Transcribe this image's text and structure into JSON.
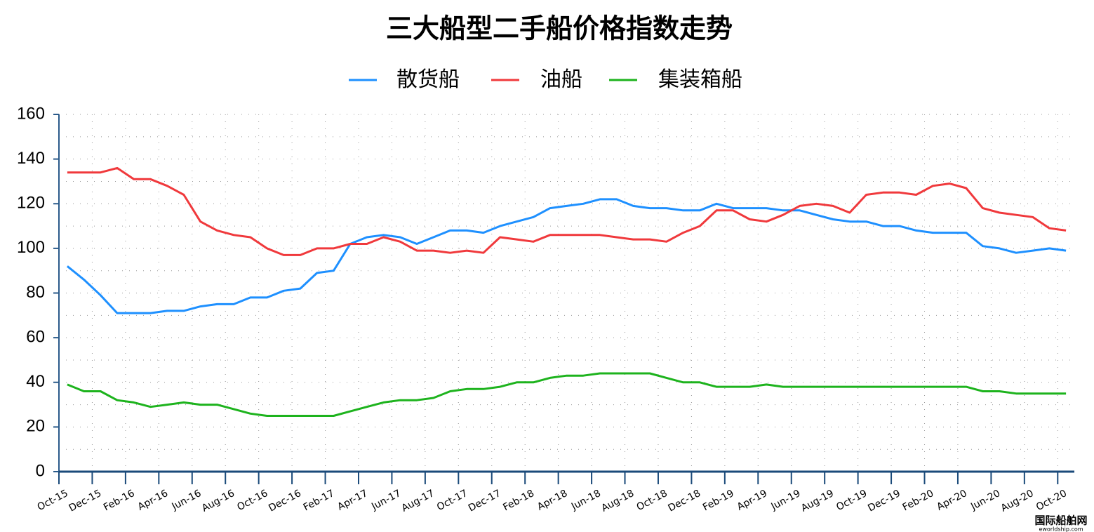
{
  "chart_data": {
    "type": "line",
    "title": "三大船型二手船价格指数走势",
    "watermark": "国际船舶网",
    "watermark_sub": "eworldship.com",
    "categories": [
      "Oct-15",
      null,
      "Dec-15",
      null,
      "Feb-16",
      null,
      "Apr-16",
      null,
      "Jun-16",
      null,
      "Aug-16",
      null,
      "Oct-16",
      null,
      "Dec-16",
      null,
      "Feb-17",
      null,
      "Apr-17",
      null,
      "Jun-17",
      null,
      "Aug-17",
      null,
      "Oct-17",
      null,
      "Dec-17",
      null,
      "Feb-18",
      null,
      "Apr-18",
      null,
      "Jun-18",
      null,
      "Aug-18",
      null,
      "Oct-18",
      null,
      "Dec-18",
      null,
      "Feb-19",
      null,
      "Apr-19",
      null,
      "Jun-19",
      null,
      "Aug-19",
      null,
      "Oct-19",
      null,
      "Dec-19",
      null,
      "Feb-20",
      null,
      "Apr-20",
      null,
      "Jun-20",
      null,
      "Aug-20",
      null,
      "Oct-20"
    ],
    "series": [
      {
        "name": "散货船",
        "color": "#1e90ff",
        "values": [
          92,
          86,
          79,
          71,
          71,
          71,
          72,
          72,
          74,
          75,
          75,
          78,
          78,
          81,
          82,
          89,
          90,
          102,
          105,
          106,
          105,
          102,
          105,
          108,
          108,
          107,
          110,
          112,
          114,
          118,
          119,
          120,
          122,
          122,
          119,
          118,
          118,
          117,
          117,
          120,
          118,
          118,
          118,
          117,
          117,
          115,
          113,
          112,
          112,
          110,
          110,
          108,
          107,
          107,
          107,
          101,
          100,
          98,
          99,
          100,
          99
        ]
      },
      {
        "name": "油船",
        "color": "#f0393c",
        "values": [
          134,
          134,
          134,
          136,
          131,
          131,
          128,
          124,
          112,
          108,
          106,
          105,
          100,
          97,
          97,
          100,
          100,
          102,
          102,
          105,
          103,
          99,
          99,
          98,
          99,
          98,
          105,
          104,
          103,
          106,
          106,
          106,
          106,
          105,
          104,
          104,
          103,
          107,
          110,
          117,
          117,
          113,
          112,
          115,
          119,
          120,
          119,
          116,
          124,
          125,
          125,
          124,
          128,
          129,
          127,
          118,
          116,
          115,
          114,
          109,
          108
        ]
      },
      {
        "name": "集装箱船",
        "color": "#1db31d",
        "values": [
          39,
          36,
          36,
          32,
          31,
          29,
          30,
          31,
          30,
          30,
          28,
          26,
          25,
          25,
          25,
          25,
          25,
          27,
          29,
          31,
          32,
          32,
          33,
          36,
          37,
          37,
          38,
          40,
          40,
          42,
          43,
          43,
          44,
          44,
          44,
          44,
          42,
          40,
          40,
          38,
          38,
          38,
          39,
          38,
          38,
          38,
          38,
          38,
          38,
          38,
          38,
          38,
          38,
          38,
          38,
          36,
          36,
          35,
          35,
          35,
          35
        ]
      }
    ],
    "ylim": [
      0,
      160
    ],
    "yticks": [
      0,
      20,
      40,
      60,
      80,
      100,
      120,
      140,
      160
    ],
    "yminorticks": [
      10,
      30,
      50,
      70,
      90,
      110,
      130,
      150
    ],
    "grid": true,
    "legend": "top"
  }
}
